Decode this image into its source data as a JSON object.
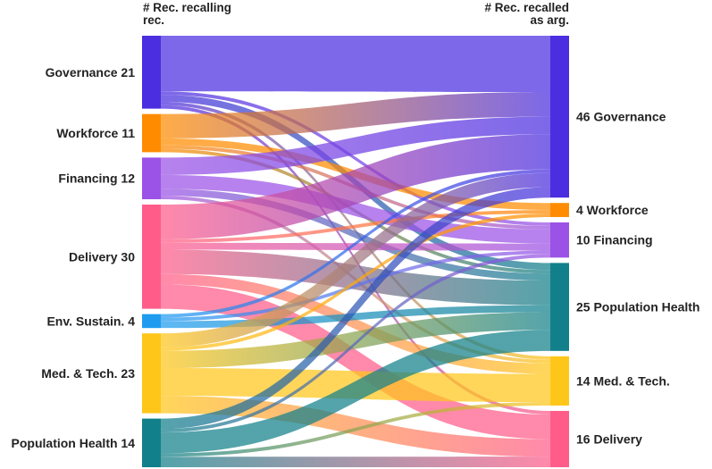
{
  "headers": {
    "left_line1": "# Rec. recalling",
    "left_line2": "rec.",
    "right_line1": "# Rec. recalled",
    "right_line2": "as arg."
  },
  "chart_data": {
    "type": "sankey",
    "left_nodes": [
      {
        "id": "L_gov",
        "label": "Governance 21",
        "value": 21,
        "color": "#4a2ee0"
      },
      {
        "id": "L_work",
        "label": "Workforce 11",
        "value": 11,
        "color": "#ff8c00"
      },
      {
        "id": "L_fin",
        "label": "Financing 12",
        "value": 12,
        "color": "#9b52e6"
      },
      {
        "id": "L_del",
        "label": "Delivery 30",
        "value": 30,
        "color": "#ff5c8a"
      },
      {
        "id": "L_env",
        "label": "Env. Sustain. 4",
        "value": 4,
        "color": "#1f9cf0"
      },
      {
        "id": "L_med",
        "label": "Med. & Tech. 23",
        "value": 23,
        "color": "#ffc61a"
      },
      {
        "id": "L_pop",
        "label": "Population Health 14",
        "value": 14,
        "color": "#12808a"
      }
    ],
    "right_nodes": [
      {
        "id": "R_gov",
        "label": "46 Governance",
        "value": 46,
        "color": "#4a2ee0"
      },
      {
        "id": "R_work",
        "label": "4 Workforce",
        "value": 4,
        "color": "#ff8c00"
      },
      {
        "id": "R_fin",
        "label": "10 Financing",
        "value": 10,
        "color": "#9b52e6"
      },
      {
        "id": "R_pop",
        "label": "25 Population Health",
        "value": 25,
        "color": "#12808a"
      },
      {
        "id": "R_med",
        "label": "14 Med. & Tech.",
        "value": 14,
        "color": "#ffc61a"
      },
      {
        "id": "R_del",
        "label": "16 Delivery",
        "value": 16,
        "color": "#ff5c8a"
      }
    ],
    "links": [
      {
        "source": "L_gov",
        "target": "R_gov",
        "value": 16
      },
      {
        "source": "L_gov",
        "target": "R_fin",
        "value": 1
      },
      {
        "source": "L_gov",
        "target": "R_pop",
        "value": 2
      },
      {
        "source": "L_gov",
        "target": "R_med",
        "value": 1
      },
      {
        "source": "L_gov",
        "target": "R_del",
        "value": 1
      },
      {
        "source": "L_work",
        "target": "R_gov",
        "value": 7
      },
      {
        "source": "L_work",
        "target": "R_work",
        "value": 2
      },
      {
        "source": "L_work",
        "target": "R_fin",
        "value": 1
      },
      {
        "source": "L_work",
        "target": "R_pop",
        "value": 1
      },
      {
        "source": "L_fin",
        "target": "R_gov",
        "value": 5
      },
      {
        "source": "L_fin",
        "target": "R_fin",
        "value": 4
      },
      {
        "source": "L_fin",
        "target": "R_pop",
        "value": 2
      },
      {
        "source": "L_fin",
        "target": "R_med",
        "value": 1
      },
      {
        "source": "L_del",
        "target": "R_gov",
        "value": 10
      },
      {
        "source": "L_del",
        "target": "R_work",
        "value": 1
      },
      {
        "source": "L_del",
        "target": "R_fin",
        "value": 2
      },
      {
        "source": "L_del",
        "target": "R_pop",
        "value": 7
      },
      {
        "source": "L_del",
        "target": "R_med",
        "value": 3
      },
      {
        "source": "L_del",
        "target": "R_del",
        "value": 7
      },
      {
        "source": "L_env",
        "target": "R_gov",
        "value": 1
      },
      {
        "source": "L_env",
        "target": "R_fin",
        "value": 1
      },
      {
        "source": "L_env",
        "target": "R_pop",
        "value": 2
      },
      {
        "source": "L_med",
        "target": "R_gov",
        "value": 4
      },
      {
        "source": "L_med",
        "target": "R_work",
        "value": 1
      },
      {
        "source": "L_med",
        "target": "R_pop",
        "value": 5
      },
      {
        "source": "L_med",
        "target": "R_med",
        "value": 8
      },
      {
        "source": "L_med",
        "target": "R_del",
        "value": 5
      },
      {
        "source": "L_pop",
        "target": "R_gov",
        "value": 3
      },
      {
        "source": "L_pop",
        "target": "R_fin",
        "value": 1
      },
      {
        "source": "L_pop",
        "target": "R_pop",
        "value": 6
      },
      {
        "source": "L_pop",
        "target": "R_med",
        "value": 1
      },
      {
        "source": "L_pop",
        "target": "R_del",
        "value": 3
      }
    ]
  }
}
